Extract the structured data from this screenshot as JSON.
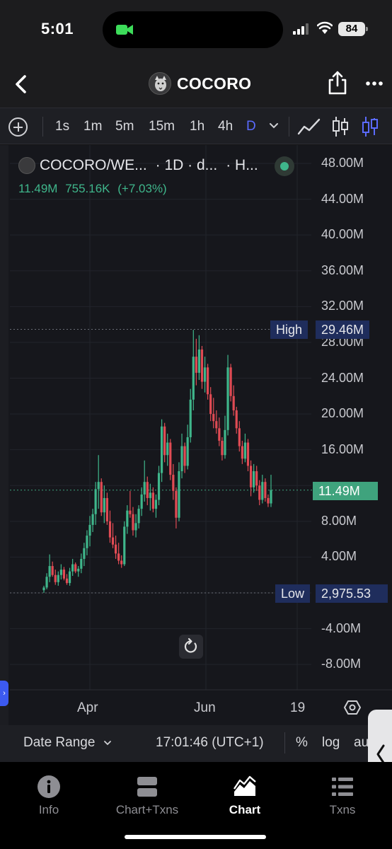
{
  "status_bar": {
    "time": "5:01",
    "battery": "84"
  },
  "header": {
    "title": "COCORO",
    "back_icon": "chevron-left-icon",
    "share_icon": "share-icon",
    "more_icon": "more-icon"
  },
  "toolbar": {
    "intervals": [
      "1s",
      "1m",
      "5m",
      "15m",
      "1h",
      "4h",
      "D"
    ],
    "active_interval": "D"
  },
  "legend": {
    "pair": "COCORO/WE...",
    "interval": "· 1D · d...",
    "extra": "· H...",
    "value": "11.49M",
    "change_abs": "755.16K",
    "change_pct": "(+7.03%)"
  },
  "markers": {
    "high_label": "High",
    "high_value": "29.46M",
    "low_label": "Low",
    "low_value": "2,975.53",
    "current_value": "11.49M"
  },
  "chart_data": {
    "type": "candlestick",
    "y_unit": "M",
    "ylim": [
      -8,
      48
    ],
    "y_ticks": [
      "48.00M",
      "44.00M",
      "40.00M",
      "36.00M",
      "32.00M",
      "28.00M",
      "24.00M",
      "20.00M",
      "16.00M",
      "8.00M",
      "4.00M",
      "-4.00M",
      "-8.00M"
    ],
    "x_ticks": [
      "Apr",
      "Jun",
      "19"
    ],
    "high": 29.46,
    "low": 0.00297553,
    "last": 11.49,
    "colors": {
      "up": "#3fb68b",
      "down": "#e04b54"
    },
    "candles": [
      [
        0.3,
        0.8,
        0.0,
        0.6
      ],
      [
        0.6,
        2.2,
        0.4,
        1.8
      ],
      [
        1.8,
        4.3,
        1.2,
        3.0
      ],
      [
        3.0,
        3.5,
        1.8,
        2.0
      ],
      [
        2.0,
        2.6,
        0.9,
        1.2
      ],
      [
        1.2,
        2.4,
        0.8,
        2.0
      ],
      [
        2.0,
        3.2,
        1.5,
        2.6
      ],
      [
        2.6,
        2.9,
        1.4,
        1.6
      ],
      [
        1.6,
        2.1,
        0.9,
        1.1
      ],
      [
        1.1,
        2.8,
        0.8,
        2.4
      ],
      [
        2.4,
        3.8,
        1.9,
        3.2
      ],
      [
        3.2,
        3.4,
        2.2,
        2.4
      ],
      [
        2.4,
        3.0,
        1.8,
        2.7
      ],
      [
        2.7,
        4.4,
        2.2,
        3.8
      ],
      [
        3.8,
        5.6,
        3.0,
        5.0
      ],
      [
        5.0,
        7.0,
        4.2,
        6.4
      ],
      [
        6.4,
        8.6,
        5.2,
        7.6
      ],
      [
        7.6,
        9.4,
        6.8,
        8.8
      ],
      [
        8.8,
        12.4,
        7.6,
        11.6
      ],
      [
        11.6,
        15.4,
        9.4,
        12.4
      ],
      [
        12.4,
        12.8,
        8.6,
        9.0
      ],
      [
        9.0,
        12.0,
        7.8,
        10.6
      ],
      [
        10.6,
        11.2,
        7.6,
        8.0
      ],
      [
        8.0,
        9.2,
        5.6,
        6.2
      ],
      [
        6.2,
        7.8,
        5.0,
        5.4
      ],
      [
        5.4,
        6.4,
        3.8,
        4.4
      ],
      [
        4.4,
        5.6,
        3.2,
        3.6
      ],
      [
        3.6,
        4.2,
        2.8,
        3.2
      ],
      [
        3.2,
        8.0,
        3.0,
        7.4
      ],
      [
        7.4,
        9.8,
        6.6,
        9.2
      ],
      [
        9.2,
        11.4,
        8.4,
        8.8
      ],
      [
        8.8,
        9.6,
        6.4,
        7.0
      ],
      [
        7.0,
        8.8,
        6.2,
        7.8
      ],
      [
        7.8,
        9.8,
        7.2,
        9.4
      ],
      [
        9.4,
        11.8,
        8.6,
        11.0
      ],
      [
        11.0,
        14.8,
        10.2,
        12.4
      ],
      [
        12.4,
        13.0,
        9.8,
        10.6
      ],
      [
        10.6,
        12.2,
        9.2,
        11.2
      ],
      [
        11.2,
        11.8,
        9.0,
        9.4
      ],
      [
        9.4,
        11.0,
        8.4,
        10.4
      ],
      [
        10.4,
        14.2,
        9.8,
        13.4
      ],
      [
        13.4,
        19.4,
        12.4,
        18.6
      ],
      [
        18.6,
        19.0,
        14.6,
        15.4
      ],
      [
        15.4,
        17.8,
        14.2,
        16.8
      ],
      [
        16.8,
        17.2,
        12.6,
        13.2
      ],
      [
        13.2,
        14.4,
        10.4,
        11.4
      ],
      [
        11.4,
        11.8,
        7.2,
        8.4
      ],
      [
        8.4,
        14.6,
        8.0,
        13.6
      ],
      [
        13.6,
        17.8,
        12.8,
        16.4
      ],
      [
        16.4,
        16.8,
        13.4,
        14.2
      ],
      [
        14.2,
        18.8,
        13.8,
        17.4
      ],
      [
        17.4,
        22.8,
        16.8,
        21.6
      ],
      [
        21.6,
        29.4,
        20.4,
        26.4
      ],
      [
        26.4,
        28.4,
        23.2,
        24.6
      ],
      [
        24.6,
        28.8,
        23.8,
        27.2
      ],
      [
        27.2,
        27.6,
        22.8,
        23.6
      ],
      [
        23.6,
        26.4,
        22.4,
        25.2
      ],
      [
        25.2,
        25.6,
        21.6,
        22.2
      ],
      [
        22.2,
        23.0,
        19.2,
        20.0
      ],
      [
        20.0,
        21.8,
        18.4,
        19.2
      ],
      [
        19.2,
        20.4,
        17.8,
        18.4
      ],
      [
        18.4,
        19.6,
        16.4,
        17.0
      ],
      [
        17.0,
        17.4,
        14.8,
        15.4
      ],
      [
        15.4,
        19.8,
        15.0,
        18.2
      ],
      [
        18.2,
        26.6,
        17.6,
        25.2
      ],
      [
        25.2,
        25.6,
        21.4,
        22.0
      ],
      [
        22.0,
        23.2,
        19.8,
        20.4
      ],
      [
        20.4,
        20.8,
        17.8,
        18.4
      ],
      [
        18.4,
        19.2,
        15.8,
        16.4
      ],
      [
        16.4,
        17.0,
        14.4,
        15.0
      ],
      [
        15.0,
        17.8,
        14.6,
        16.8
      ],
      [
        16.8,
        17.2,
        13.6,
        14.2
      ],
      [
        14.2,
        14.8,
        10.8,
        11.8
      ],
      [
        11.8,
        14.4,
        11.2,
        13.6
      ],
      [
        13.6,
        14.2,
        11.4,
        12.0
      ],
      [
        12.0,
        12.6,
        9.8,
        10.4
      ],
      [
        10.4,
        13.2,
        10.0,
        12.4
      ],
      [
        12.4,
        12.8,
        10.2,
        10.6
      ],
      [
        10.6,
        11.0,
        9.6,
        10.0
      ],
      [
        10.0,
        13.2,
        9.6,
        11.49
      ]
    ]
  },
  "x_axis": {
    "ticks": [
      "Apr",
      "Jun",
      "19"
    ]
  },
  "range_bar": {
    "label": "Date Range",
    "time": "17:01:46 (UTC+1)",
    "pct": "%",
    "log": "log",
    "auto": "au"
  },
  "bottom_nav": [
    {
      "label": "Info",
      "icon": "info-icon"
    },
    {
      "label": "Chart+Txns",
      "icon": "split-view-icon"
    },
    {
      "label": "Chart",
      "icon": "chart-icon"
    },
    {
      "label": "Txns",
      "icon": "list-icon"
    }
  ],
  "bottom_nav_active": "Chart"
}
